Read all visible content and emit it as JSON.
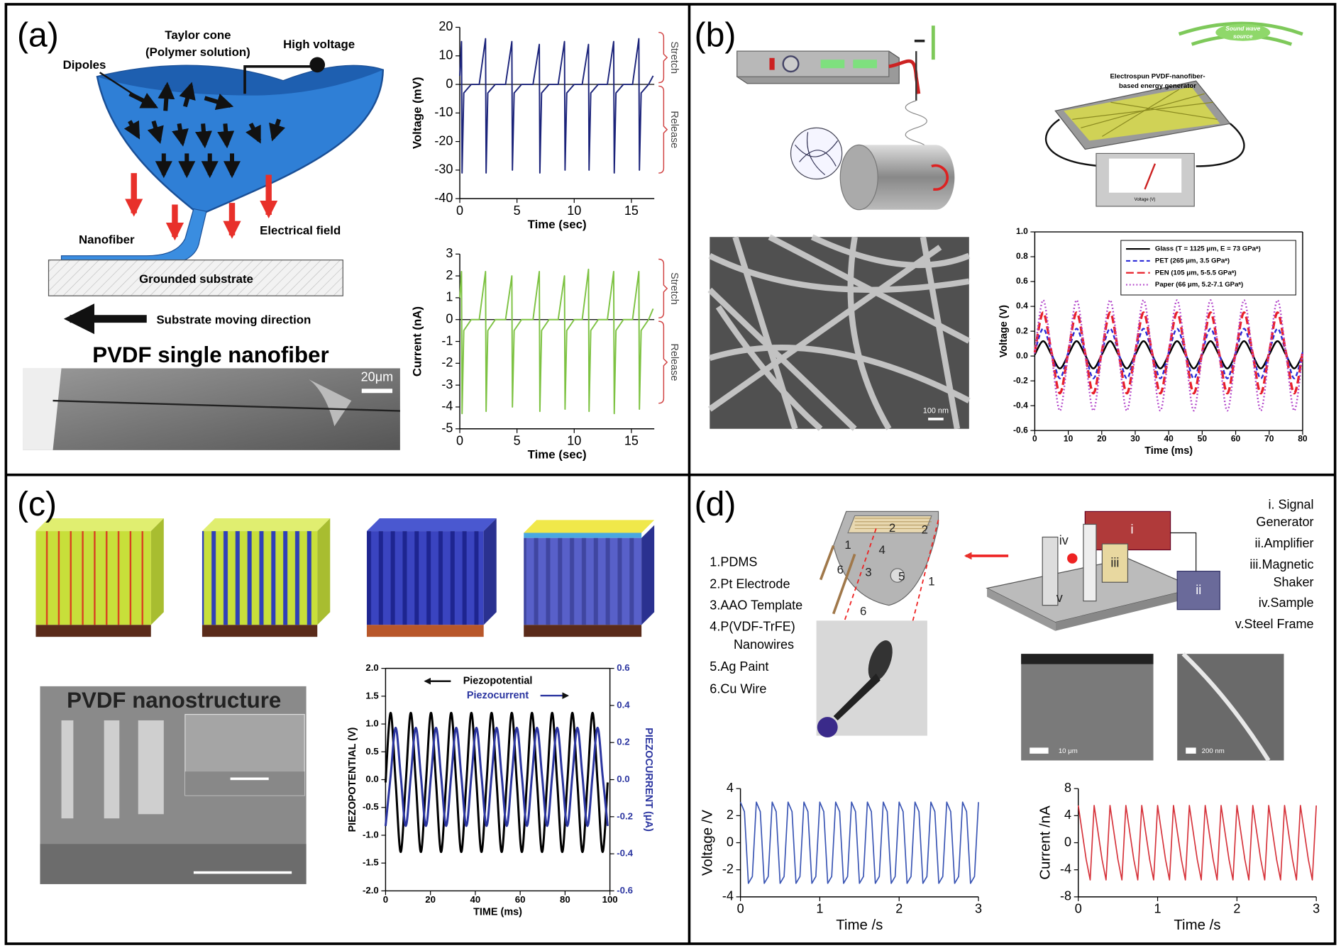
{
  "panels": {
    "a": {
      "label": "(a)",
      "taylor_cone": "Taylor cone",
      "polymer_solution": "(Polymer solution)",
      "high_voltage": "High voltage",
      "dipoles": "Dipoles",
      "nanofiber": "Nanofiber",
      "electrical_field": "Electrical field",
      "substrate": "Grounded substrate",
      "direction": "Substrate moving direction",
      "sem_title": "PVDF single nanofiber",
      "scale_bar": "20μm"
    },
    "b": {
      "label": "(b)",
      "source": [
        "Sound wave",
        "source"
      ],
      "generator": [
        "Electrospun PVDF-nanofiber-",
        "based  energy generator"
      ],
      "meter": "Voltage (V)",
      "scale_bar": "100 nm"
    },
    "c": {
      "label": "(c)",
      "sem_title": "PVDF nanostructure"
    },
    "d": {
      "label": "(d)",
      "parts": [
        "1.PDMS",
        "2.Pt Electrode",
        "3.AAO Template",
        "4.P(VDF-TrFE)",
        "Nanowires",
        "5.Ag Paint",
        "6.Cu Wire"
      ],
      "setup": [
        "i.   Signal",
        "Generator",
        "ii.Amplifier",
        "iii.Magnetic",
        "Shaker",
        "iv.Sample",
        "v.Steel Frame"
      ],
      "part_numbers": [
        "1",
        "2",
        "2",
        "3",
        "4",
        "5",
        "1",
        "6",
        "6"
      ],
      "setup_numerals": [
        "i",
        "ii",
        "iii",
        "iv",
        "v"
      ],
      "scale_bars": [
        "10 μm",
        "200 nm"
      ]
    }
  },
  "chart_data": [
    {
      "type": "line",
      "xlabel": "Time (sec)",
      "ylabel": "Voltage (mV)",
      "x": [
        0,
        0.15,
        0.2,
        0.35,
        1.0,
        1.7,
        2.25,
        2.3,
        2.45,
        3.1,
        4.0,
        4.55,
        4.6,
        4.75,
        5.4,
        6.4,
        6.95,
        7.0,
        7.15,
        7.8,
        8.6,
        9.15,
        9.2,
        9.35,
        10.0,
        10.7,
        11.25,
        11.3,
        11.45,
        12.1,
        12.9,
        13.45,
        13.5,
        13.65,
        14.3,
        15.1,
        15.65,
        15.7,
        15.85,
        16.5,
        16.9
      ],
      "series": [
        {
          "color": "#1b237a",
          "values": [
            3,
            15,
            -31,
            -3,
            0,
            0,
            16,
            -31,
            -3,
            0,
            0,
            15,
            -30,
            -3,
            0,
            0,
            14,
            -31,
            -3,
            0,
            0,
            15,
            -30,
            -3,
            0,
            0,
            14,
            -30,
            -3,
            0,
            0,
            15,
            -31,
            -3,
            0,
            0,
            16,
            -30,
            -3,
            0,
            3
          ]
        }
      ],
      "xlim": [
        0,
        17
      ],
      "ylim": [
        -40,
        20
      ],
      "xticks": [
        0,
        5,
        10,
        15
      ],
      "yticks": [
        -40,
        -30,
        -20,
        -10,
        0,
        10,
        20
      ],
      "annotations": [
        "Stretch",
        "Release"
      ]
    },
    {
      "type": "line",
      "xlabel": "Time (sec)",
      "ylabel": "Current (nA)",
      "x": [
        0,
        0.15,
        0.2,
        0.35,
        1.0,
        1.7,
        2.25,
        2.3,
        2.45,
        3.1,
        4.0,
        4.55,
        4.6,
        4.75,
        5.4,
        6.4,
        6.95,
        7.0,
        7.15,
        7.8,
        8.6,
        9.15,
        9.2,
        9.35,
        10.0,
        10.7,
        11.25,
        11.3,
        11.45,
        12.1,
        12.9,
        13.45,
        13.5,
        13.65,
        14.3,
        15.1,
        15.65,
        15.7,
        15.85,
        16.5,
        16.9
      ],
      "series": [
        {
          "color": "#7dc242",
          "values": [
            1,
            2.2,
            -4.3,
            -0.5,
            0,
            0,
            2.2,
            -4.2,
            -0.5,
            0,
            0,
            2.0,
            -4.0,
            -0.5,
            0,
            0,
            2.2,
            -4.2,
            -0.5,
            0,
            0,
            2.0,
            -4.1,
            -0.5,
            0,
            0,
            2.3,
            -4.2,
            -0.5,
            0,
            0,
            2.2,
            -4.3,
            -0.5,
            0,
            0,
            2.2,
            -4.1,
            -0.5,
            0,
            0.5
          ]
        }
      ],
      "xlim": [
        0,
        17
      ],
      "ylim": [
        -5,
        3
      ],
      "xticks": [
        0,
        5,
        10,
        15
      ],
      "yticks": [
        -5,
        -4,
        -3,
        -2,
        -1,
        0,
        1,
        2,
        3
      ],
      "annotations": [
        "Stretch",
        "Release"
      ]
    },
    {
      "type": "line",
      "xlabel": "Time (ms)",
      "ylabel": "Voltage (V)",
      "x": [
        0,
        2.5,
        5,
        7.5,
        10,
        12.5,
        15,
        17.5,
        20,
        22.5,
        25,
        27.5,
        30,
        32.5,
        35,
        37.5,
        40,
        42.5,
        45,
        47.5,
        50,
        52.5,
        55,
        57.5,
        60,
        62.5,
        65,
        67.5,
        70,
        72.5,
        75,
        77.5,
        80
      ],
      "series": [
        {
          "name": "Glass (T = 1125 μm, E = 73 GPaᵃ)",
          "color": "#000000",
          "linestyle": "solid",
          "values": [
            0.01,
            0.12,
            0.01,
            -0.1,
            0.01,
            0.12,
            0.01,
            -0.1,
            0.01,
            0.12,
            0.01,
            -0.1,
            0.01,
            0.12,
            0.01,
            -0.1,
            0.01,
            0.12,
            0.01,
            -0.1,
            0.01,
            0.12,
            0.01,
            -0.1,
            0.01,
            0.12,
            0.01,
            -0.1,
            0.01,
            0.12,
            0.01,
            -0.1,
            0.01
          ]
        },
        {
          "name": "PET (265 μm, 3.5 GPaᵃ)",
          "color": "#2b2bd8",
          "linestyle": "dashed",
          "values": [
            0.03,
            0.22,
            0.03,
            -0.18,
            0.03,
            0.22,
            0.03,
            -0.18,
            0.03,
            0.22,
            0.03,
            -0.18,
            0.03,
            0.22,
            0.03,
            -0.18,
            0.03,
            0.22,
            0.03,
            -0.18,
            0.03,
            0.22,
            0.03,
            -0.18,
            0.03,
            0.22,
            0.03,
            -0.18,
            0.03,
            0.22,
            0.03,
            -0.18,
            0.03
          ]
        },
        {
          "name": "PEN (105 μm, 5-5.5 GPaᵃ)",
          "color": "#e8202a",
          "linestyle": "longdash",
          "values": [
            0.03,
            0.35,
            0.03,
            -0.3,
            0.03,
            0.35,
            0.03,
            -0.3,
            0.03,
            0.35,
            0.03,
            -0.3,
            0.03,
            0.35,
            0.03,
            -0.3,
            0.03,
            0.35,
            0.03,
            -0.3,
            0.03,
            0.35,
            0.03,
            -0.3,
            0.03,
            0.35,
            0.03,
            -0.3,
            0.03,
            0.35,
            0.03,
            -0.3,
            0.03
          ]
        },
        {
          "name": "Paper (66 μm, 5.2-7.1 GPaᵃ)",
          "color": "#b040c8",
          "linestyle": "dotted",
          "values": [
            0.02,
            0.45,
            0.02,
            -0.44,
            0.02,
            0.45,
            0.02,
            -0.44,
            0.02,
            0.45,
            0.02,
            -0.44,
            0.02,
            0.45,
            0.02,
            -0.44,
            0.02,
            0.45,
            0.02,
            -0.44,
            0.02,
            0.45,
            0.02,
            -0.44,
            0.02,
            0.45,
            0.02,
            -0.44,
            0.02,
            0.45,
            0.02,
            -0.44,
            0.02
          ]
        }
      ],
      "xlim": [
        0,
        80
      ],
      "ylim": [
        -0.6,
        1.0
      ],
      "xticks": [
        0,
        10,
        20,
        30,
        40,
        50,
        60,
        70,
        80
      ],
      "yticks": [
        -0.6,
        -0.4,
        -0.2,
        {
          "value": 0,
          "label": "0.0"
        },
        0.2,
        0.4,
        0.6,
        0.8,
        {
          "value": 1,
          "label": "1.0"
        }
      ],
      "legend": "upper right"
    },
    {
      "type": "line",
      "xlabel": "TIME (ms)",
      "ylabel": "PIEZOPOTENTIAL (V)",
      "y2label": "PIEZOCURRENT (μA)",
      "x": [
        0,
        2.25,
        4.5,
        6.75,
        9,
        11.25,
        13.5,
        15.75,
        18,
        20.25,
        22.5,
        24.75,
        27,
        29.25,
        31.5,
        33.75,
        36,
        38.25,
        40.5,
        42.75,
        45,
        47.25,
        49.5,
        51.75,
        54,
        56.25,
        58.5,
        60.75,
        63,
        65.25,
        67.5,
        69.75,
        72,
        74.25,
        76.5,
        78.75,
        81,
        83.25,
        85.5,
        87.75,
        90,
        92.25,
        94.5,
        96.75,
        99
      ],
      "series": [
        {
          "name": "Piezopotential",
          "color": "#000000",
          "values": [
            -0.05,
            1.2,
            -0.05,
            -1.3,
            -0.05,
            1.2,
            -0.05,
            -1.3,
            -0.05,
            1.2,
            -0.05,
            -1.3,
            -0.05,
            1.2,
            -0.05,
            -1.3,
            -0.05,
            1.2,
            -0.05,
            -1.3,
            -0.05,
            1.2,
            -0.05,
            -1.3,
            -0.05,
            1.2,
            -0.05,
            -1.3,
            -0.05,
            1.2,
            -0.05,
            -1.3,
            -0.05,
            1.2,
            -0.05,
            -1.3,
            -0.05,
            1.2,
            -0.05,
            -1.3,
            -0.05,
            1.2,
            -0.05,
            -1.3,
            -0.05
          ]
        },
        {
          "name": "Piezocurrent",
          "color": "#2b35a0",
          "axis": "y2",
          "values": [
            -0.25,
            0.02,
            0.28,
            0.02,
            -0.25,
            0.02,
            0.28,
            0.02,
            -0.25,
            0.02,
            0.28,
            0.02,
            -0.25,
            0.02,
            0.28,
            0.02,
            -0.25,
            0.02,
            0.28,
            0.02,
            -0.25,
            0.02,
            0.28,
            0.02,
            -0.25,
            0.02,
            0.28,
            0.02,
            -0.25,
            0.02,
            0.28,
            0.02,
            -0.25,
            0.02,
            0.28,
            0.02,
            -0.25,
            0.02,
            0.28,
            0.02,
            -0.25,
            0.02,
            0.28,
            0.02,
            -0.25
          ]
        }
      ],
      "xlim": [
        0,
        100
      ],
      "xticks": [
        0,
        20,
        40,
        60,
        80,
        100
      ],
      "ylim": [
        -2,
        2
      ],
      "yticks": [
        {
          "value": -2,
          "label": "-2.0"
        },
        -1.5,
        {
          "value": -1,
          "label": "-1.0"
        },
        -0.5,
        {
          "value": 0,
          "label": "0.0"
        },
        0.5,
        {
          "value": 1,
          "label": "1.0"
        },
        1.5,
        {
          "value": 2,
          "label": "2.0"
        }
      ],
      "y2lim": [
        -0.6,
        0.6
      ],
      "y2ticks": [
        -0.6,
        -0.4,
        -0.2,
        {
          "value": 0,
          "label": "0.0"
        },
        0.2,
        0.4,
        0.6
      ],
      "legend": "upper center"
    },
    {
      "type": "line",
      "xlabel": "Time /s",
      "ylabel": "Voltage /V",
      "x": [
        0,
        0.05,
        0.1,
        0.15,
        0.2,
        0.25,
        0.3,
        0.35,
        0.4,
        0.45,
        0.5,
        0.55,
        0.6,
        0.65,
        0.7,
        0.75,
        0.8,
        0.85,
        0.9,
        0.95,
        1.0,
        1.05,
        1.1,
        1.15,
        1.2,
        1.25,
        1.3,
        1.35,
        1.4,
        1.45,
        1.5,
        1.55,
        1.6,
        1.65,
        1.7,
        1.75,
        1.8,
        1.85,
        1.9,
        1.95,
        2.0,
        2.05,
        2.1,
        2.15,
        2.2,
        2.25,
        2.3,
        2.35,
        2.4,
        2.45,
        2.5,
        2.55,
        2.6,
        2.65,
        2.7,
        2.75,
        2.8,
        2.85,
        2.9,
        2.95,
        3.0
      ],
      "series": [
        {
          "color": "#3a55b4",
          "values": [
            3.0,
            2.3,
            -3.0,
            -2.5,
            3.0,
            2.3,
            -3.0,
            -2.5,
            3.0,
            2.3,
            -3.0,
            -2.5,
            3.0,
            2.3,
            -3.0,
            -2.5,
            3.0,
            2.3,
            -3.0,
            -2.5,
            3.0,
            2.3,
            -3.0,
            -2.5,
            3.0,
            2.3,
            -3.0,
            -2.5,
            3.0,
            2.3,
            -3.0,
            -2.5,
            3.0,
            2.3,
            -3.0,
            -2.5,
            3.0,
            2.3,
            -3.0,
            -2.5,
            3.0,
            2.3,
            -3.0,
            -2.5,
            3.0,
            2.3,
            -3.0,
            -2.5,
            3.0,
            2.3,
            -3.0,
            -2.5,
            3.0,
            2.3,
            -3.0,
            -2.5,
            3.0,
            2.3,
            -3.0,
            -2.5,
            3.0
          ]
        }
      ],
      "xlim": [
        0,
        3
      ],
      "ylim": [
        -4,
        4
      ],
      "xticks": [
        0,
        1,
        2,
        3
      ],
      "yticks": [
        -4,
        -2,
        0,
        2,
        4
      ]
    },
    {
      "type": "line",
      "xlabel": "Time /s",
      "ylabel": "Current /nA",
      "x": [
        0,
        0.05,
        0.1,
        0.15,
        0.2,
        0.25,
        0.3,
        0.35,
        0.4,
        0.45,
        0.5,
        0.55,
        0.6,
        0.65,
        0.7,
        0.75,
        0.8,
        0.85,
        0.9,
        0.95,
        1.0,
        1.05,
        1.1,
        1.15,
        1.2,
        1.25,
        1.3,
        1.35,
        1.4,
        1.45,
        1.5,
        1.55,
        1.6,
        1.65,
        1.7,
        1.75,
        1.8,
        1.85,
        1.9,
        1.95,
        2.0,
        2.05,
        2.1,
        2.15,
        2.2,
        2.25,
        2.3,
        2.35,
        2.4,
        2.45,
        2.5,
        2.55,
        2.6,
        2.65,
        2.7,
        2.75,
        2.8,
        2.85,
        2.9,
        2.95,
        3.0
      ],
      "series": [
        {
          "color": "#d6333b",
          "values": [
            5.5,
            1.5,
            -2.5,
            -5.5,
            5.5,
            1.5,
            -2.5,
            -5.5,
            5.5,
            1.5,
            -2.5,
            -5.5,
            5.5,
            1.5,
            -2.5,
            -5.5,
            5.5,
            1.5,
            -2.5,
            -5.5,
            5.5,
            1.5,
            -2.5,
            -5.5,
            5.5,
            1.5,
            -2.5,
            -5.5,
            5.5,
            1.5,
            -2.5,
            -5.5,
            5.5,
            1.5,
            -2.5,
            -5.5,
            5.5,
            1.5,
            -2.5,
            -5.5,
            5.5,
            1.5,
            -2.5,
            -5.5,
            5.5,
            1.5,
            -2.5,
            -5.5,
            5.5,
            1.5,
            -2.5,
            -5.5,
            5.5,
            1.5,
            -2.5,
            -5.5,
            5.5,
            1.5,
            -2.5,
            -5.5,
            5.5
          ]
        }
      ],
      "xlim": [
        0,
        3
      ],
      "ylim": [
        -8,
        8
      ],
      "xticks": [
        0,
        1,
        2,
        3
      ],
      "yticks": [
        -8,
        -4,
        0,
        4,
        8
      ]
    }
  ]
}
